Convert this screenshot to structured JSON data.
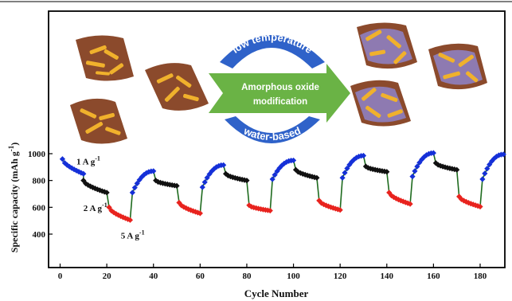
{
  "chart_data": {
    "type": "scatter",
    "xlabel": "Cycle Number",
    "ylabel_main": "Specific capacity (mAh g",
    "ylabel_sup": "-1",
    "ylabel_close": ")",
    "xlim": [
      -4,
      193
    ],
    "ylim": [
      150,
      1220
    ],
    "xticks": [
      0,
      20,
      40,
      60,
      80,
      100,
      120,
      140,
      160,
      180
    ],
    "yticks": [
      400,
      600,
      800,
      1000
    ],
    "segment_colors": {
      "black": "#111111",
      "red": "#e8231e",
      "blue": "#1530d8",
      "line": "#1e6b1e"
    },
    "segments": [
      {
        "color": "blue",
        "x": [
          1,
          10
        ],
        "y": [
          960,
          850
        ]
      },
      {
        "color": "black",
        "x": [
          10,
          20
        ],
        "y": [
          800,
          710
        ]
      },
      {
        "color": "red",
        "x": [
          21,
          30
        ],
        "y": [
          600,
          505
        ]
      },
      {
        "color": "blue",
        "x": [
          31,
          40
        ],
        "y": [
          710,
          870
        ]
      },
      {
        "color": "black",
        "x": [
          41,
          50
        ],
        "y": [
          800,
          760
        ]
      },
      {
        "color": "red",
        "x": [
          51,
          60
        ],
        "y": [
          635,
          555
        ]
      },
      {
        "color": "blue",
        "x": [
          61,
          70
        ],
        "y": [
          750,
          915
        ]
      },
      {
        "color": "black",
        "x": [
          71,
          80
        ],
        "y": [
          850,
          800
        ]
      },
      {
        "color": "red",
        "x": [
          81,
          90
        ],
        "y": [
          615,
          575
        ]
      },
      {
        "color": "blue",
        "x": [
          91,
          100
        ],
        "y": [
          810,
          950
        ]
      },
      {
        "color": "black",
        "x": [
          101,
          110
        ],
        "y": [
          880,
          820
        ]
      },
      {
        "color": "red",
        "x": [
          111,
          120
        ],
        "y": [
          650,
          580
        ]
      },
      {
        "color": "blue",
        "x": [
          121,
          130
        ],
        "y": [
          820,
          985
        ]
      },
      {
        "color": "black",
        "x": [
          131,
          140
        ],
        "y": [
          905,
          865
        ]
      },
      {
        "color": "red",
        "x": [
          141,
          150
        ],
        "y": [
          710,
          625
        ]
      },
      {
        "color": "blue",
        "x": [
          151,
          160
        ],
        "y": [
          830,
          1005
        ]
      },
      {
        "color": "black",
        "x": [
          161,
          170
        ],
        "y": [
          930,
          880
        ]
      },
      {
        "color": "red",
        "x": [
          171,
          180
        ],
        "y": [
          680,
          605
        ]
      },
      {
        "color": "blue",
        "x": [
          181,
          190
        ],
        "y": [
          810,
          995
        ]
      }
    ],
    "annotations": [
      {
        "text": "1 A g",
        "sup": "-1",
        "x": 7,
        "y": 945
      },
      {
        "text": "2 A g",
        "sup": "-1",
        "x": 10,
        "y": 595
      },
      {
        "text": "5 A g",
        "sup": "-1",
        "x": 26,
        "y": 390
      }
    ]
  },
  "schematic": {
    "arrow_line1": "Amorphous oxide",
    "arrow_line2": "modification",
    "top_arc": "low temperature",
    "bottom_arc": "water-based",
    "colors": {
      "arrow": "#6ab345",
      "arc": "#2f62c9",
      "substrate": "#8b4a2c",
      "rod": "#f0b12c",
      "coating": "#8e7fc0"
    }
  }
}
